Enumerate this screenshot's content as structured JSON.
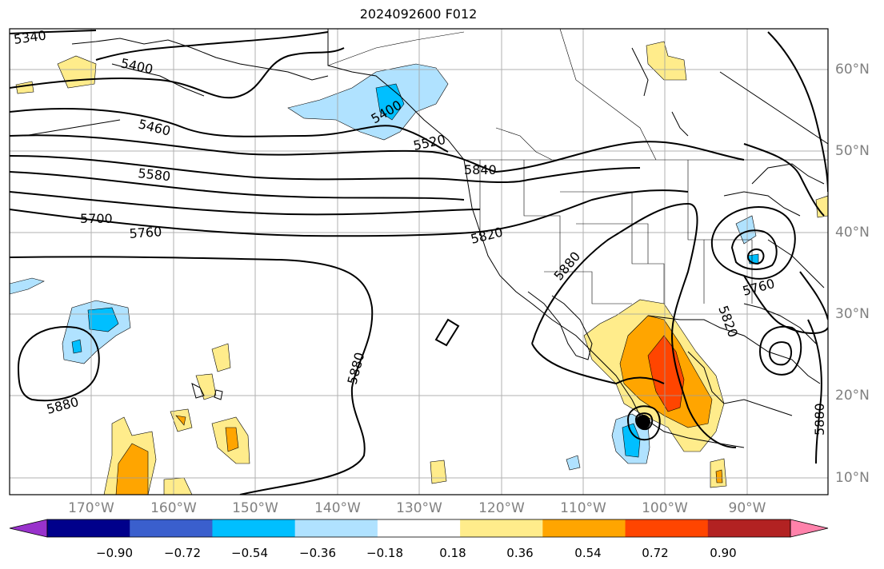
{
  "title": "2024092600 F012",
  "lat_labels": [
    "60°N",
    "50°N",
    "40°N",
    "30°N",
    "20°N",
    "10°N"
  ],
  "lon_labels": [
    "170°W",
    "160°W",
    "150°W",
    "140°W",
    "130°W",
    "120°W",
    "110°W",
    "100°W",
    "90°W"
  ],
  "contour_labels": [
    "5340",
    "5400",
    "5460",
    "5580",
    "5700",
    "5760",
    "5820",
    "5840",
    "5520",
    "5400",
    "5880",
    "5880",
    "5880",
    "5760",
    "5820",
    "5880"
  ],
  "colorbar": {
    "tick_labels": [
      "−0.90",
      "−0.72",
      "−0.54",
      "−0.36",
      "−0.18",
      "0.18",
      "0.36",
      "0.54",
      "0.72",
      "0.90"
    ],
    "colors": [
      "#9932cc",
      "#00008b",
      "#3a5fcd",
      "#00bfff",
      "#b0e2ff",
      "#ffffff",
      "#ffec8b",
      "#ffa500",
      "#ff4500",
      "#b22222",
      "#ff82ab"
    ]
  },
  "colors": {
    "contour": "#000000",
    "grid": "#a0a0a0",
    "coast": "#000000"
  },
  "marker": "storm-center-dot"
}
